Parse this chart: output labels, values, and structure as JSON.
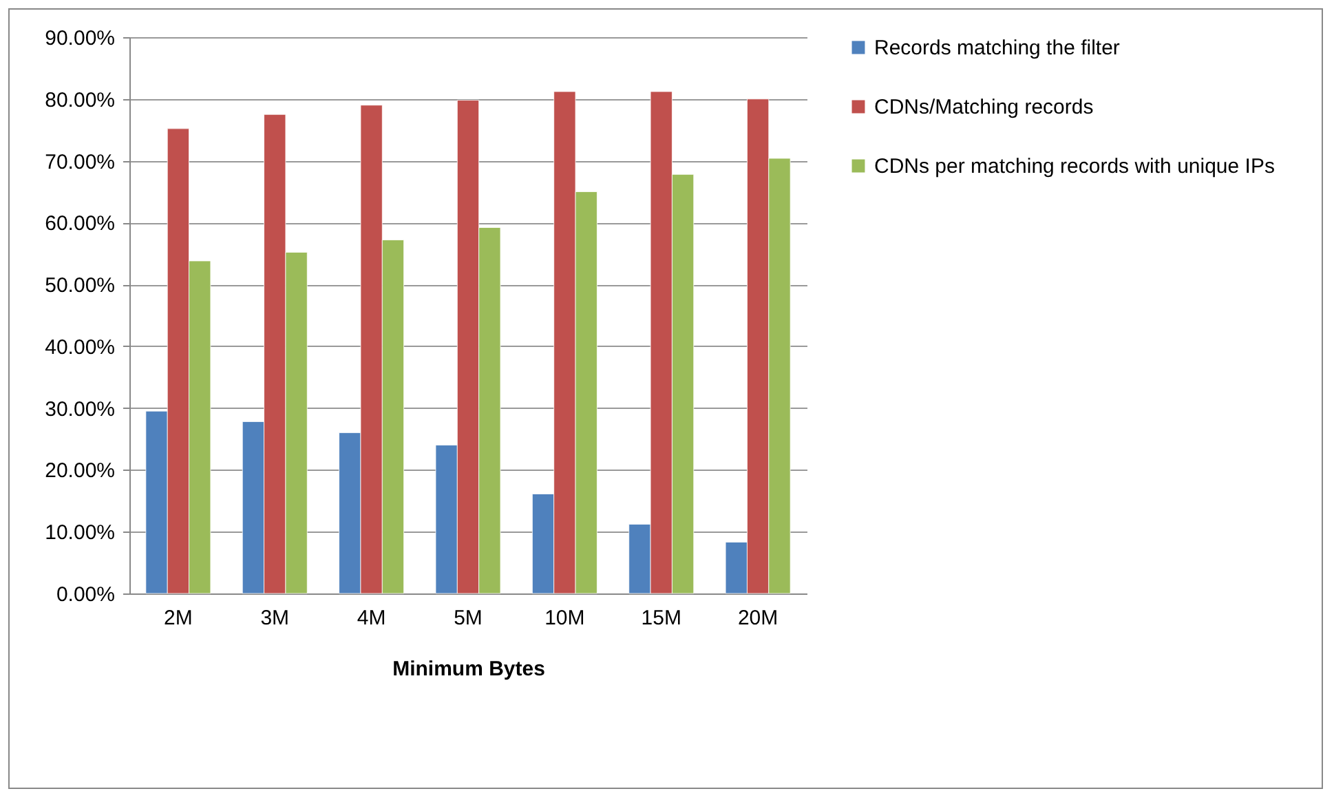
{
  "chart_data": {
    "type": "bar",
    "xlabel": "Minimum Bytes",
    "categories": [
      "2M",
      "3M",
      "4M",
      "5M",
      "10M",
      "15M",
      "20M"
    ],
    "series": [
      {
        "name": "Records matching the filter",
        "color": "#4f81bd",
        "values": [
          29.5,
          27.8,
          26.0,
          24.0,
          16.1,
          11.2,
          8.3
        ]
      },
      {
        "name": "CDNs/Matching records",
        "color": "#c0504d",
        "values": [
          75.2,
          77.5,
          79.0,
          79.8,
          81.2,
          81.2,
          80.0
        ]
      },
      {
        "name": "CDNs per matching records with unique IPs",
        "color": "#9bbb59",
        "values": [
          53.8,
          55.2,
          57.2,
          59.2,
          65.0,
          67.8,
          70.4
        ]
      }
    ],
    "ylim": [
      0,
      90
    ],
    "yticks": [
      {
        "value": 0,
        "label": "0.00%"
      },
      {
        "value": 10,
        "label": "10.00%"
      },
      {
        "value": 20,
        "label": "20.00%"
      },
      {
        "value": 30,
        "label": "30.00%"
      },
      {
        "value": 40,
        "label": "40.00%"
      },
      {
        "value": 50,
        "label": "50.00%"
      },
      {
        "value": 60,
        "label": "60.00%"
      },
      {
        "value": 70,
        "label": "70.00%"
      },
      {
        "value": 80,
        "label": "80.00%"
      },
      {
        "value": 90,
        "label": "90.00%"
      }
    ],
    "grid": "y",
    "legend": "right"
  }
}
